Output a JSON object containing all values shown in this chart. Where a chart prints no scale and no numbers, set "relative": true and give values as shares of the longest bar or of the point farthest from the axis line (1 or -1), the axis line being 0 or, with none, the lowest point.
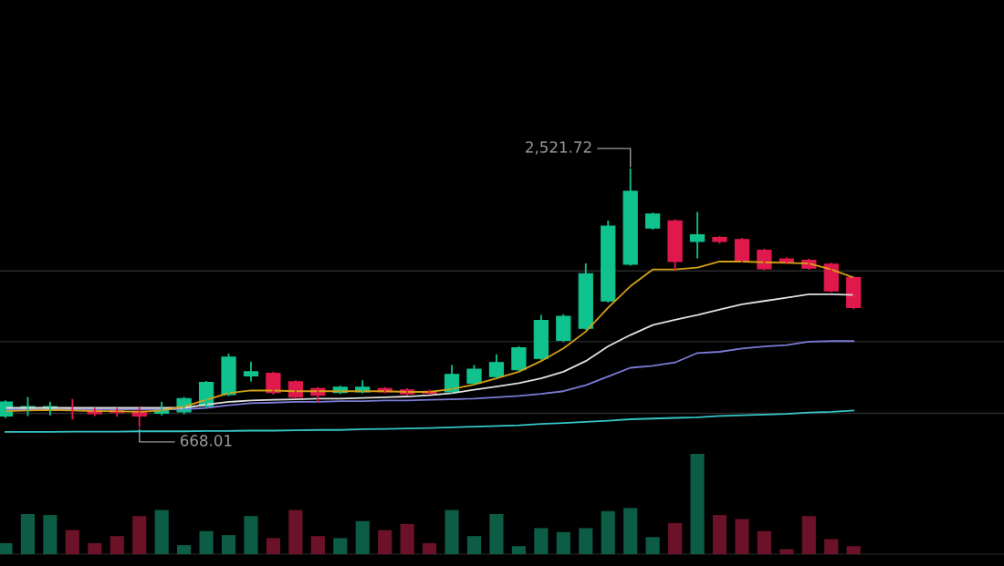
{
  "chart_data": [
    {
      "type": "candlestick",
      "categories": [
        null,
        null,
        null,
        null,
        null,
        null,
        null,
        null,
        null,
        null,
        null,
        null,
        null,
        null,
        null,
        null,
        null,
        null,
        null,
        null,
        null,
        null,
        null,
        null,
        null,
        null,
        null,
        null,
        null,
        null,
        null,
        null,
        null,
        null,
        null,
        null,
        null,
        null,
        null
      ],
      "ohlc": [
        [
          745,
          851,
          735,
          846
        ],
        [
          788,
          875,
          750,
          813
        ],
        [
          798,
          841,
          755,
          813
        ],
        [
          803,
          861,
          726,
          784
        ],
        [
          793,
          798,
          750,
          760
        ],
        [
          788,
          798,
          745,
          769
        ],
        [
          779,
          803,
          668.01,
          745
        ],
        [
          764,
          841,
          755,
          793
        ],
        [
          774,
          875,
          764,
          870
        ],
        [
          817,
          991,
          813,
          986
        ],
        [
          899,
          1188,
          894,
          1169
        ],
        [
          1034,
          1130,
          1000,
          1063
        ],
        [
          1053,
          1058,
          904,
          914
        ],
        [
          991,
          996,
          875,
          880
        ],
        [
          942,
          947,
          846,
          894
        ],
        [
          914,
          957,
          909,
          952
        ],
        [
          918,
          996,
          914,
          952
        ],
        [
          942,
          947,
          914,
          918
        ],
        [
          933,
          938,
          899,
          904
        ],
        [
          923,
          928,
          904,
          909
        ],
        [
          918,
          1106,
          914,
          1044
        ],
        [
          981,
          1106,
          976,
          1082
        ],
        [
          1029,
          1183,
          1024,
          1130
        ],
        [
          1077,
          1241,
          1073,
          1236
        ],
        [
          1159,
          1467,
          1154,
          1433
        ],
        [
          1289,
          1472,
          1284,
          1462
        ],
        [
          1376,
          1838,
          1371,
          1770
        ],
        [
          1573,
          2146,
          1568,
          2112
        ],
        [
          1838,
          2521.72,
          1833,
          2363
        ],
        [
          2098,
          2204,
          2093,
          2199
        ],
        [
          2151,
          2156,
          1800,
          1857
        ],
        [
          2002,
          2209,
          1886,
          2050
        ],
        [
          2031,
          2035,
          1992,
          2002
        ],
        [
          2016,
          2021,
          1857,
          1862
        ],
        [
          1939,
          1944,
          1800,
          1804
        ],
        [
          1876,
          1881,
          1843,
          1847
        ],
        [
          1867,
          1872,
          1804,
          1809
        ],
        [
          1838,
          1843,
          1641,
          1645
        ],
        [
          1742,
          1747,
          1520,
          1525
        ]
      ],
      "colors": [
        "#10c28e",
        "#10c28e",
        "#10c28e",
        "#e0194d",
        "#e0194d",
        "#e0194d",
        "#e0194d",
        "#10c28e",
        "#10c28e",
        "#10c28e",
        "#10c28e",
        "#10c28e",
        "#e0194d",
        "#e0194d",
        "#e0194d",
        "#10c28e",
        "#10c28e",
        "#e0194d",
        "#e0194d",
        "#e0194d",
        "#10c28e",
        "#10c28e",
        "#10c28e",
        "#10c28e",
        "#10c28e",
        "#10c28e",
        "#10c28e",
        "#10c28e",
        "#10c28e",
        "#10c28e",
        "#e0194d",
        "#10c28e",
        "#e0194d",
        "#e0194d",
        "#e0194d",
        "#e0194d",
        "#e0194d",
        "#e0194d",
        "#e0194d"
      ],
      "series": [
        {
          "type": "line",
          "color": "#35c6c6",
          "values": [
            630,
            630,
            630,
            632,
            632,
            632,
            634,
            634,
            634,
            637,
            637,
            639,
            639,
            642,
            644,
            644,
            649,
            651,
            654,
            658,
            663,
            668,
            673,
            678,
            687,
            694,
            702,
            711,
            721,
            726,
            731,
            735,
            745,
            750,
            755,
            759,
            769,
            774,
            784
          ]
        },
        {
          "type": "line",
          "color": "#7b7bd6",
          "values": [
            793,
            793,
            793,
            793,
            793,
            793,
            793,
            793,
            793,
            803,
            822,
            837,
            841,
            846,
            846,
            851,
            851,
            856,
            856,
            861,
            865,
            870,
            880,
            889,
            904,
            923,
            967,
            1029,
            1092,
            1106,
            1130,
            1198,
            1207,
            1231,
            1246,
            1255,
            1280,
            1284,
            1284
          ]
        },
        {
          "type": "line",
          "color": "#e0e0e0",
          "values": [
            803,
            803,
            803,
            803,
            803,
            803,
            803,
            803,
            803,
            827,
            846,
            856,
            861,
            865,
            870,
            870,
            875,
            880,
            885,
            894,
            909,
            933,
            957,
            981,
            1015,
            1063,
            1140,
            1246,
            1328,
            1400,
            1438,
            1472,
            1511,
            1549,
            1573,
            1597,
            1621,
            1621,
            1617
          ]
        },
        {
          "type": "line",
          "color": "#d4a017",
          "values": [
            779,
            784,
            788,
            784,
            779,
            779,
            774,
            784,
            812,
            861,
            909,
            928,
            928,
            923,
            923,
            923,
            923,
            923,
            918,
            918,
            938,
            971,
            1015,
            1063,
            1140,
            1231,
            1352,
            1525,
            1679,
            1800,
            1800,
            1814,
            1857,
            1857,
            1852,
            1848,
            1843,
            1800,
            1742
          ]
        }
      ],
      "yticks": [
        {
          "value": 764,
          "label": null
        },
        {
          "value": 1280,
          "label": null
        },
        {
          "value": 1790,
          "label": null
        }
      ],
      "grid": "y",
      "annotations": [
        "2,521.72",
        "668.01"
      ]
    },
    {
      "type": "bar",
      "relative": true,
      "categories": [
        null,
        null,
        null,
        null,
        null,
        null,
        null,
        null,
        null,
        null,
        null,
        null,
        null,
        null,
        null,
        null,
        null,
        null,
        null,
        null,
        null,
        null,
        null,
        null,
        null,
        null,
        null,
        null,
        null,
        null,
        null,
        null,
        null,
        null,
        null,
        null,
        null,
        null,
        null
      ],
      "values": [
        0.11,
        0.4,
        0.39,
        0.24,
        0.11,
        0.18,
        0.38,
        0.44,
        0.09,
        0.23,
        0.19,
        0.38,
        0.16,
        0.44,
        0.18,
        0.16,
        0.33,
        0.24,
        0.3,
        0.11,
        0.44,
        0.18,
        0.4,
        0.08,
        0.26,
        0.22,
        0.26,
        0.43,
        0.46,
        0.17,
        0.31,
        1,
        0.39,
        0.35,
        0.23,
        0.05,
        0.38,
        0.15,
        0.08
      ],
      "colors": [
        "#0d5c45",
        "#0d5c45",
        "#0d5c45",
        "#6b1228",
        "#6b1228",
        "#6b1228",
        "#6b1228",
        "#0d5c45",
        "#0d5c45",
        "#0d5c45",
        "#0d5c45",
        "#0d5c45",
        "#6b1228",
        "#6b1228",
        "#6b1228",
        "#0d5c45",
        "#0d5c45",
        "#6b1228",
        "#6b1228",
        "#6b1228",
        "#0d5c45",
        "#0d5c45",
        "#0d5c45",
        "#0d5c45",
        "#0d5c45",
        "#0d5c45",
        "#0d5c45",
        "#0d5c45",
        "#0d5c45",
        "#0d5c45",
        "#6b1228",
        "#0d5c45",
        "#6b1228",
        "#6b1228",
        "#6b1228",
        "#6b1228",
        "#6b1228",
        "#6b1228",
        "#6b1228"
      ]
    }
  ]
}
